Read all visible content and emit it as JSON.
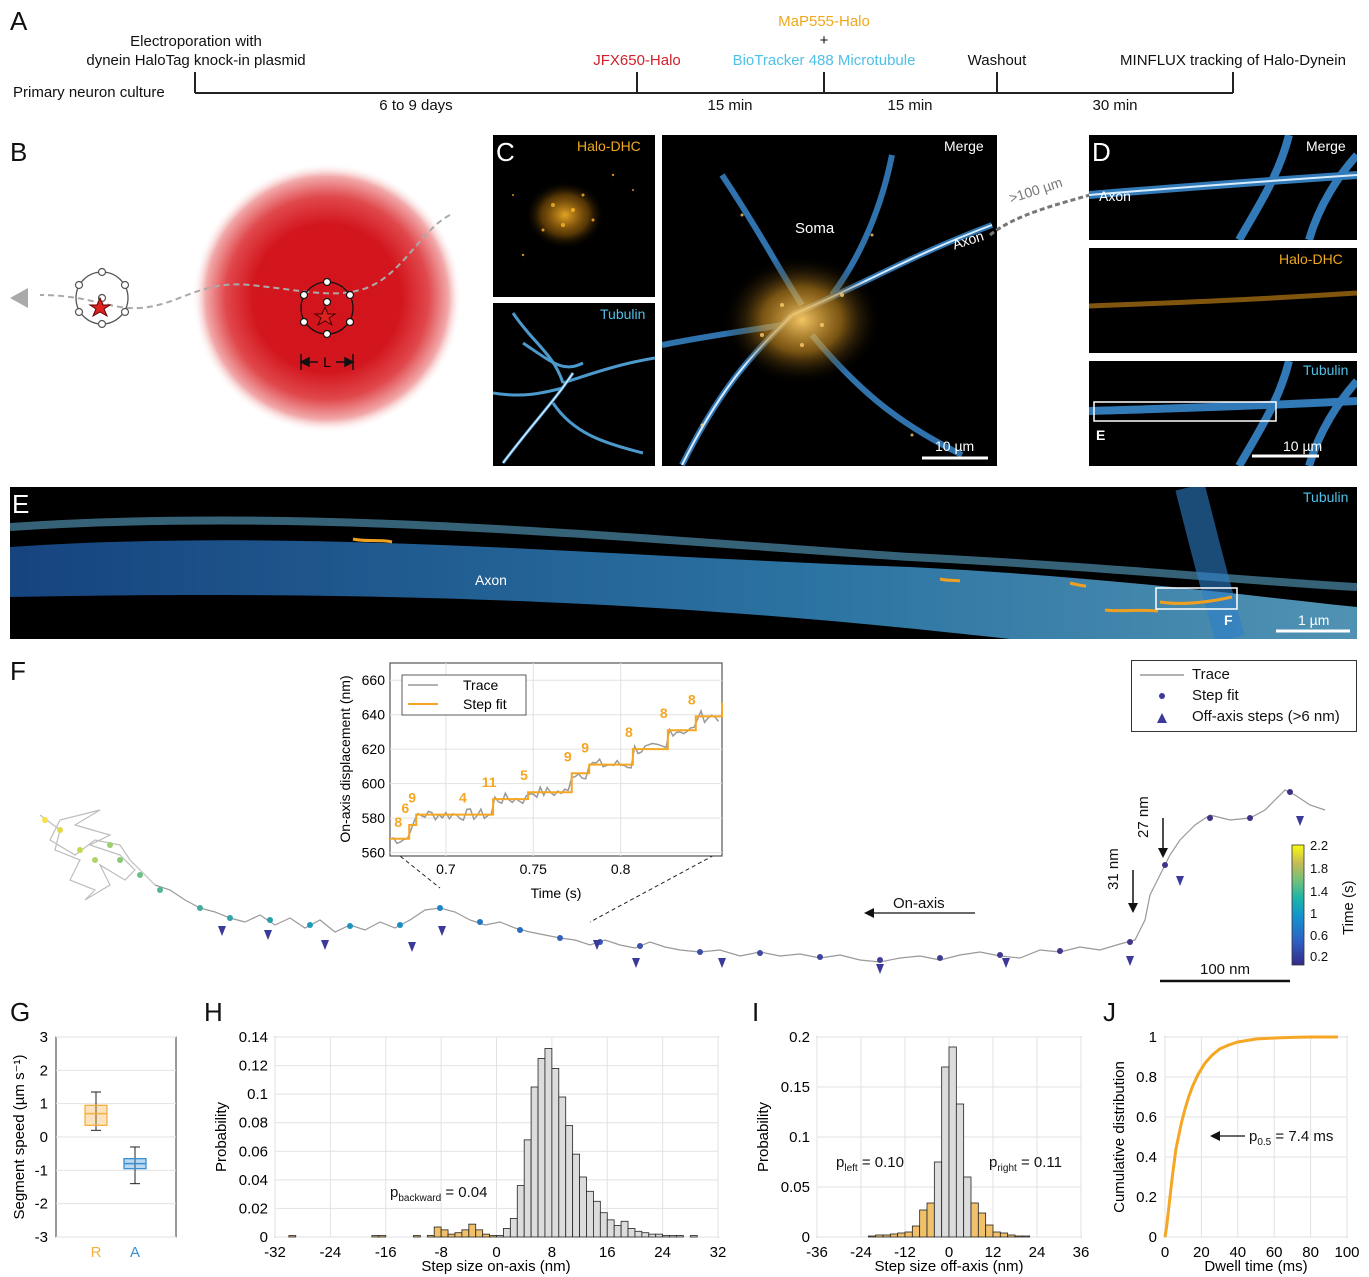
{
  "panels": {
    "A": "A",
    "B": "B",
    "C": "C",
    "D": "D",
    "E": "E",
    "F": "F",
    "G": "G",
    "H": "H",
    "I": "I",
    "J": "J"
  },
  "timeline": {
    "start_label": "Primary neuron culture",
    "electroporation": "Electroporation with",
    "electroporation2": "dynein HaloTag knock-in plasmid",
    "jfx": "JFX650-Halo",
    "map": "MaP555-Halo",
    "plus": "+",
    "biotracker": "BioTracker 488 Microtubule",
    "washout": "Washout",
    "minflux": "MINFLUX tracking of Halo-Dynein",
    "dur1": "6 to 9 days",
    "dur2": "15 min",
    "dur3": "15 min",
    "dur4": "30 min",
    "colors": {
      "jfx": "#d0202a",
      "map": "#f0a81c",
      "biotracker": "#4fc0e8"
    }
  },
  "panel_b": {
    "L_label": "L"
  },
  "panel_c": {
    "halo_label": "Halo-DHC",
    "tubulin_label": "Tubulin",
    "merge_label": "Merge",
    "soma_label": "Soma",
    "axon_label": "Axon",
    "scale_label": "10 µm",
    "distance_label": ">100 µm"
  },
  "panel_d": {
    "merge_label": "Merge",
    "axon_label": "Axon",
    "halo_label": "Halo-DHC",
    "tubulin_label": "Tubulin",
    "box_label": "E",
    "scale_label": "10 µm"
  },
  "panel_e": {
    "tubulin_label": "Tubulin",
    "axon_label": "Axon",
    "box_label": "F",
    "scale_label": "1 µm"
  },
  "panel_f": {
    "legend": {
      "trace": "Trace",
      "stepfit": "Step fit",
      "offaxis": "Off-axis steps (>6 nm)"
    },
    "on_axis_label": "On-axis",
    "arrow1_label": "27 nm",
    "arrow2_label": "31 nm",
    "scale_label": "100 nm",
    "colorbar": {
      "label": "Time (s)",
      "ticks": [
        "2.2",
        "1.8",
        "1.4",
        "1",
        "0.6",
        "0.2"
      ]
    },
    "inset": {
      "xlabel": "Time (s)",
      "ylabel": "On-axis displacement (nm)",
      "xticks": [
        "0.7",
        "0.75",
        "0.8"
      ],
      "yticks": [
        "660",
        "640",
        "620",
        "600",
        "580",
        "560"
      ],
      "legend": {
        "trace": "Trace",
        "stepfit": "Step fit"
      },
      "step_labels": [
        "8",
        "6",
        "9",
        "4",
        "11",
        "5",
        "9",
        "9",
        "8",
        "8",
        "8"
      ]
    }
  },
  "chart_data": [
    {
      "type": "line",
      "panel": "F-inset",
      "xlabel": "Time (s)",
      "ylabel": "On-axis displacement (nm)",
      "xlim": [
        0.668,
        0.858
      ],
      "ylim": [
        558,
        670
      ],
      "series": [
        {
          "name": "Step fit",
          "x": [
            0.668,
            0.675,
            0.679,
            0.683,
            0.712,
            0.727,
            0.747,
            0.772,
            0.782,
            0.807,
            0.827,
            0.843,
            0.858
          ],
          "y": [
            568,
            568,
            576,
            582,
            582,
            591,
            595,
            606,
            611,
            620,
            631,
            639,
            647
          ]
        }
      ]
    },
    {
      "type": "box",
      "panel": "G",
      "ylabel": "Segment speed (µm s⁻¹)",
      "ylim": [
        -3,
        3
      ],
      "yticks": [
        "3",
        "2",
        "1",
        "0",
        "-1",
        "-2",
        "-3"
      ],
      "categories": [
        "R",
        "A"
      ],
      "colors": [
        "#f5b042",
        "#3a8fd0"
      ],
      "boxes": [
        {
          "name": "R",
          "min": 0.2,
          "q1": 0.35,
          "median": 0.7,
          "q3": 0.95,
          "max": 1.35
        },
        {
          "name": "A",
          "min": -1.4,
          "q1": -0.95,
          "median": -0.8,
          "q3": -0.65,
          "max": -0.3
        }
      ]
    },
    {
      "type": "bar",
      "panel": "H",
      "xlabel": "Step size on-axis (nm)",
      "ylabel": "Probability",
      "xlim": [
        -32,
        32
      ],
      "ylim": [
        0,
        0.14
      ],
      "xticks": [
        "-32",
        "-24",
        "-16",
        "-8",
        "0",
        "8",
        "16",
        "24",
        "32"
      ],
      "yticks": [
        "0.14",
        "0.12",
        "0.1",
        "0.08",
        "0.06",
        "0.04",
        "0.02",
        "0"
      ],
      "annotation": "p_backward = 0.04",
      "bins": [
        -30,
        -29,
        -28,
        -27,
        -26,
        -25,
        -24,
        -23,
        -22,
        -21,
        -20,
        -19,
        -18,
        -17,
        -16,
        -15,
        -14,
        -13,
        -12,
        -11,
        -10,
        -9,
        -8,
        -7,
        -6,
        -5,
        -4,
        -3,
        -2,
        -1,
        0,
        1,
        2,
        3,
        4,
        5,
        6,
        7,
        8,
        9,
        10,
        11,
        12,
        13,
        14,
        15,
        16,
        17,
        18,
        19,
        20,
        21,
        22,
        23,
        24,
        25,
        26,
        27,
        28,
        29
      ],
      "values": [
        0.001,
        0,
        0,
        0,
        0,
        0,
        0,
        0,
        0,
        0,
        0,
        0,
        0.001,
        0.001,
        0,
        0,
        0,
        0,
        0.001,
        0,
        0.001,
        0.007,
        0.005,
        0.002,
        0.003,
        0.005,
        0.009,
        0.005,
        0.002,
        0.001,
        0.001,
        0.006,
        0.013,
        0.036,
        0.068,
        0.105,
        0.125,
        0.132,
        0.118,
        0.098,
        0.078,
        0.058,
        0.042,
        0.032,
        0.025,
        0.017,
        0.012,
        0.008,
        0.011,
        0.006,
        0.004,
        0.003,
        0.002,
        0.002,
        0.001,
        0.001,
        0.001,
        0,
        0.001,
        0
      ]
    },
    {
      "type": "bar",
      "panel": "I",
      "xlabel": "Step size off-axis (nm)",
      "ylabel": "Probability",
      "xlim": [
        -36,
        36
      ],
      "ylim": [
        0,
        0.2
      ],
      "xticks": [
        "-36",
        "-24",
        "-12",
        "0",
        "12",
        "24",
        "36"
      ],
      "yticks": [
        "0.2",
        "0.15",
        "0.1",
        "0.05",
        "0"
      ],
      "annotations": [
        "p_left = 0.10",
        "p_right = 0.11"
      ],
      "bins": [
        -22,
        -20,
        -18,
        -16,
        -14,
        -12,
        -10,
        -8,
        -6,
        -4,
        -2,
        0,
        2,
        4,
        6,
        8,
        10,
        12,
        14,
        16,
        18,
        20
      ],
      "values": [
        0.001,
        0.002,
        0.002,
        0.003,
        0.004,
        0.005,
        0.011,
        0.027,
        0.034,
        0.075,
        0.17,
        0.19,
        0.133,
        0.06,
        0.034,
        0.024,
        0.012,
        0.005,
        0.004,
        0.002,
        0.001,
        0.001
      ]
    },
    {
      "type": "line",
      "panel": "J",
      "xlabel": "Dwell time (ms)",
      "ylabel": "Cumulative distribution",
      "xlim": [
        0,
        100
      ],
      "ylim": [
        0,
        1
      ],
      "xticks": [
        "0",
        "20",
        "40",
        "60",
        "80",
        "100"
      ],
      "yticks": [
        "1",
        "0.8",
        "0.6",
        "0.4",
        "0.2",
        "0"
      ],
      "annotation": "p0.5 = 7.4 ms",
      "series": [
        {
          "name": "",
          "x": [
            0,
            1,
            2,
            3,
            4,
            5,
            6,
            7.4,
            9,
            11,
            13,
            15,
            18,
            22,
            26,
            30,
            35,
            40,
            50,
            60,
            70,
            80,
            95
          ],
          "y": [
            0,
            0.06,
            0.14,
            0.22,
            0.3,
            0.37,
            0.44,
            0.5,
            0.57,
            0.64,
            0.7,
            0.75,
            0.81,
            0.87,
            0.91,
            0.94,
            0.96,
            0.975,
            0.99,
            0.995,
            0.998,
            1,
            1
          ]
        }
      ]
    }
  ]
}
